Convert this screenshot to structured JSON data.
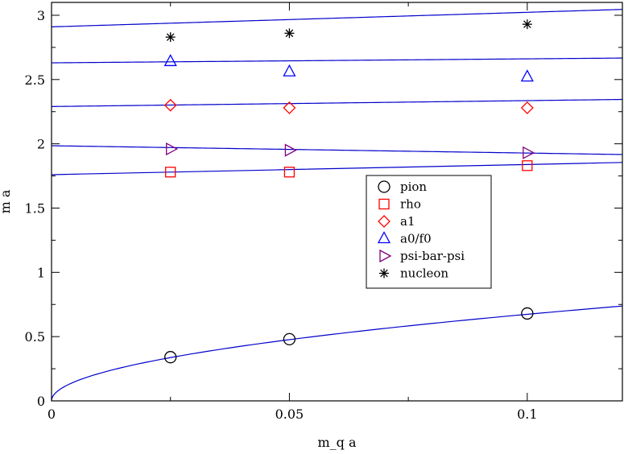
{
  "chart_data": {
    "type": "scatter",
    "title": "",
    "xlabel": "m_q a",
    "ylabel": "m a",
    "xlim": [
      0,
      0.12
    ],
    "ylim": [
      0,
      3.1
    ],
    "xticks": [
      0,
      0.05,
      0.1
    ],
    "xtick_labels": [
      "0",
      "0.05",
      "0.1"
    ],
    "yticks": [
      0,
      0.5,
      1,
      1.5,
      2,
      2.5,
      3
    ],
    "ytick_labels": [
      "0",
      "0.5",
      "1",
      "1.5",
      "2",
      "2.5",
      "3"
    ],
    "grid": false,
    "legend_position": "center-right",
    "fit_color": "#0000cc",
    "series": [
      {
        "name": "pion",
        "marker": "circle",
        "color": "#000000",
        "x": [
          0.025,
          0.05,
          0.1
        ],
        "y": [
          0.34,
          0.48,
          0.68
        ],
        "fit": {
          "kind": "sqrt",
          "coef": 2.13
        }
      },
      {
        "name": "rho",
        "marker": "square",
        "color": "#ff0000",
        "x": [
          0.025,
          0.05,
          0.1
        ],
        "y": [
          1.78,
          1.78,
          1.83
        ],
        "fit": {
          "kind": "linear",
          "intercept": 1.76,
          "slope": 0.79
        }
      },
      {
        "name": "a1",
        "marker": "diamond",
        "color": "#ff0000",
        "x": [
          0.025,
          0.05,
          0.1
        ],
        "y": [
          2.3,
          2.28,
          2.28
        ],
        "fit": {
          "kind": "linear",
          "intercept": 2.29,
          "slope": 0.46
        }
      },
      {
        "name": "a0/f0",
        "marker": "triangle-up",
        "color": "#0000ff",
        "x": [
          0.025,
          0.05,
          0.1
        ],
        "y": [
          2.64,
          2.56,
          2.52
        ],
        "fit": {
          "kind": "linear",
          "intercept": 2.63,
          "slope": 0.31
        }
      },
      {
        "name": "psi-bar-psi",
        "marker": "triangle-right",
        "color": "#800080",
        "x": [
          0.025,
          0.05,
          0.1
        ],
        "y": [
          1.96,
          1.95,
          1.93
        ],
        "fit": {
          "kind": "linear",
          "intercept": 1.985,
          "slope": -0.57
        }
      },
      {
        "name": "nucleon",
        "marker": "star",
        "color": "#000000",
        "x": [
          0.025,
          0.05,
          0.1
        ],
        "y": [
          2.83,
          2.86,
          2.93
        ],
        "fit": {
          "kind": "linear",
          "intercept": 2.91,
          "slope": 1.13
        }
      }
    ]
  }
}
